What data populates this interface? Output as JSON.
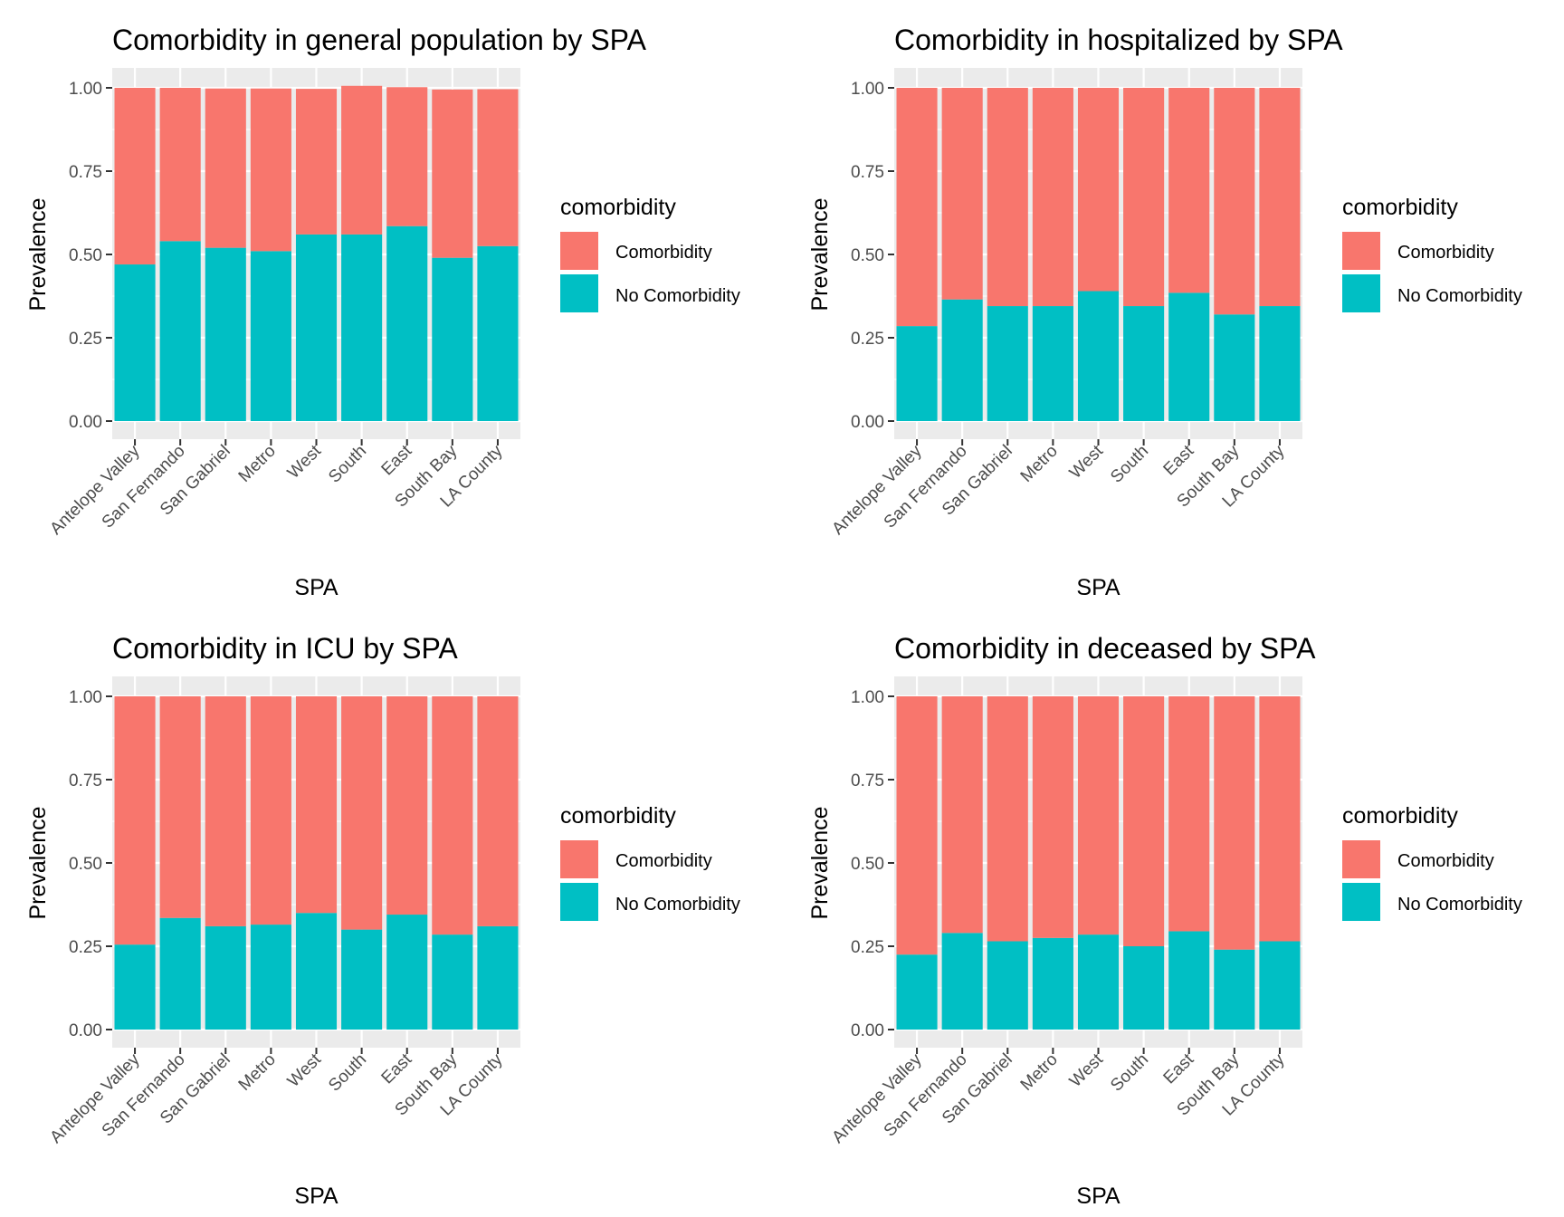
{
  "colors": {
    "comorbidity": "#F8766D",
    "no_comorbidity": "#00BFC4",
    "panel_bg": "#EBEBEB",
    "grid": "#FFFFFF",
    "tick_text": "#4D4D4D"
  },
  "chart_data": [
    {
      "type": "bar",
      "stacked": true,
      "title": "Comorbidity in general population by SPA",
      "xlabel": "SPA",
      "ylabel": "Prevalence",
      "ylim": [
        0,
        1
      ],
      "yticks": [
        "0.00",
        "0.25",
        "0.50",
        "0.75",
        "1.00"
      ],
      "grid": true,
      "legend": {
        "title": "comorbidity",
        "position": "right"
      },
      "categories": [
        "Antelope Valley",
        "San Fernando",
        "San Gabriel",
        "Metro",
        "West",
        "South",
        "East",
        "South Bay",
        "LA County"
      ],
      "series": [
        {
          "name": "No Comorbidity",
          "values": [
            0.47,
            0.54,
            0.52,
            0.51,
            0.56,
            0.56,
            0.585,
            0.49,
            0.525
          ]
        },
        {
          "name": "Comorbidity",
          "values": [
            0.53,
            0.46,
            0.478,
            0.488,
            0.437,
            0.446,
            0.417,
            0.505,
            0.471
          ]
        }
      ]
    },
    {
      "type": "bar",
      "stacked": true,
      "title": "Comorbidity in hospitalized by SPA",
      "xlabel": "SPA",
      "ylabel": "Prevalence",
      "ylim": [
        0,
        1
      ],
      "yticks": [
        "0.00",
        "0.25",
        "0.50",
        "0.75",
        "1.00"
      ],
      "grid": true,
      "legend": {
        "title": "comorbidity",
        "position": "right"
      },
      "categories": [
        "Antelope Valley",
        "San Fernando",
        "San Gabriel",
        "Metro",
        "West",
        "South",
        "East",
        "South Bay",
        "LA County"
      ],
      "series": [
        {
          "name": "No Comorbidity",
          "values": [
            0.285,
            0.365,
            0.345,
            0.345,
            0.39,
            0.345,
            0.385,
            0.32,
            0.345
          ]
        },
        {
          "name": "Comorbidity",
          "values": [
            0.715,
            0.635,
            0.655,
            0.655,
            0.61,
            0.655,
            0.615,
            0.68,
            0.655
          ]
        }
      ]
    },
    {
      "type": "bar",
      "stacked": true,
      "title": "Comorbidity in ICU by SPA",
      "xlabel": "SPA",
      "ylabel": "Prevalence",
      "ylim": [
        0,
        1
      ],
      "yticks": [
        "0.00",
        "0.25",
        "0.50",
        "0.75",
        "1.00"
      ],
      "grid": true,
      "legend": {
        "title": "comorbidity",
        "position": "right"
      },
      "categories": [
        "Antelope Valley",
        "San Fernando",
        "San Gabriel",
        "Metro",
        "West",
        "South",
        "East",
        "South Bay",
        "LA County"
      ],
      "series": [
        {
          "name": "No Comorbidity",
          "values": [
            0.255,
            0.335,
            0.31,
            0.315,
            0.35,
            0.3,
            0.345,
            0.285,
            0.31
          ]
        },
        {
          "name": "Comorbidity",
          "values": [
            0.745,
            0.665,
            0.69,
            0.685,
            0.65,
            0.7,
            0.655,
            0.715,
            0.69
          ]
        }
      ]
    },
    {
      "type": "bar",
      "stacked": true,
      "title": "Comorbidity in deceased by SPA",
      "xlabel": "SPA",
      "ylabel": "Prevalence",
      "ylim": [
        0,
        1
      ],
      "yticks": [
        "0.00",
        "0.25",
        "0.50",
        "0.75",
        "1.00"
      ],
      "grid": true,
      "legend": {
        "title": "comorbidity",
        "position": "right"
      },
      "categories": [
        "Antelope Valley",
        "San Fernando",
        "San Gabriel",
        "Metro",
        "West",
        "South",
        "East",
        "South Bay",
        "LA County"
      ],
      "series": [
        {
          "name": "No Comorbidity",
          "values": [
            0.225,
            0.29,
            0.265,
            0.275,
            0.285,
            0.25,
            0.295,
            0.24,
            0.265
          ]
        },
        {
          "name": "Comorbidity",
          "values": [
            0.775,
            0.71,
            0.735,
            0.725,
            0.715,
            0.75,
            0.705,
            0.76,
            0.735
          ]
        }
      ]
    }
  ]
}
